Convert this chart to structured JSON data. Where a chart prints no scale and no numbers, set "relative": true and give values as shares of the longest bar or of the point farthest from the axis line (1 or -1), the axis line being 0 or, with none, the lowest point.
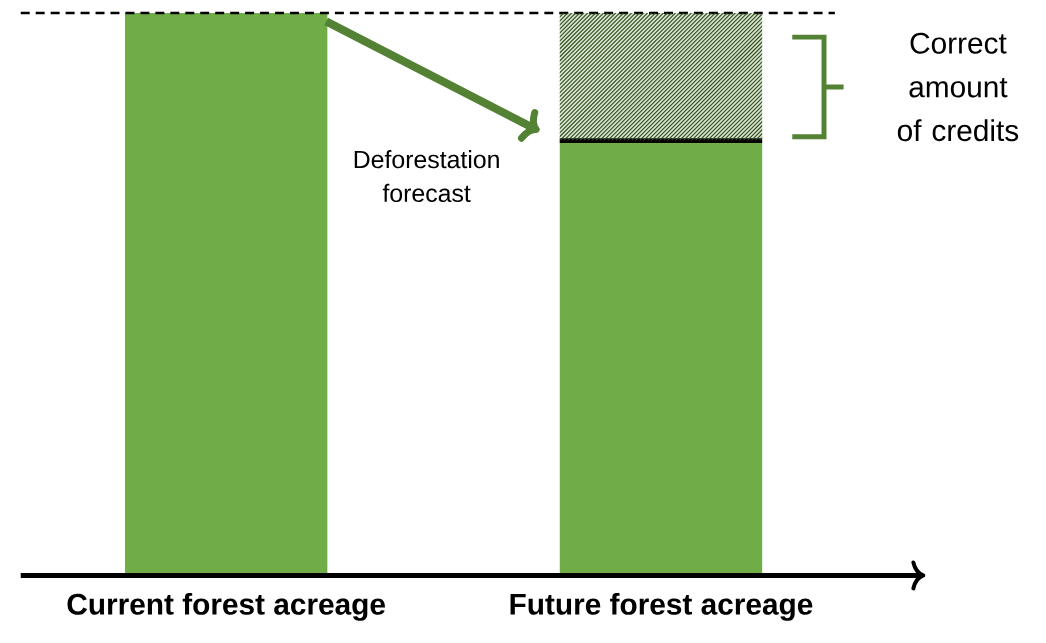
{
  "chart_data": {
    "type": "bar",
    "relative": true,
    "stacked": true,
    "categories": [
      "Current forest acreage",
      "Future forest acreage"
    ],
    "series": [
      {
        "color": "#70ad47",
        "values": [
          1,
          0.773
        ]
      },
      {
        "color": "#d9e4cf",
        "values": [
          null,
          0.227
        ]
      }
    ],
    "ref_lines": [
      {
        "axis": "y",
        "value": 1,
        "line_style": "dashed",
        "color": "#000000"
      }
    ],
    "annotations": [
      "Deforestation forecast",
      "Correct amount of credits"
    ]
  }
}
